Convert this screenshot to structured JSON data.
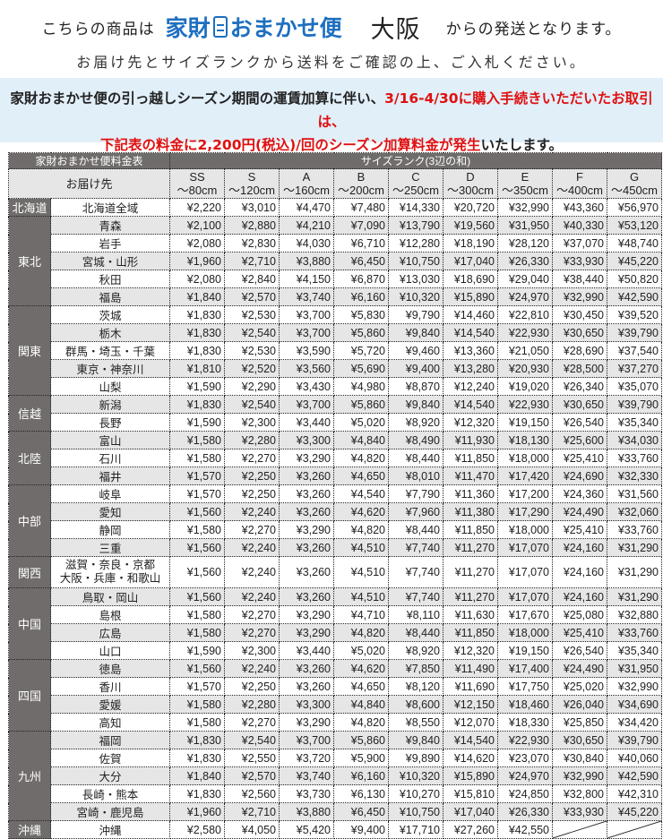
{
  "header": {
    "prefix": "こちらの商品は",
    "logo_text": "家財おまかせ便",
    "origin": "大阪",
    "suffix": "からの発送となります。",
    "instruction": "お届け先とサイズランクから送料をご確認の上、ご入札ください。"
  },
  "notice": {
    "line1_black": "家財おまかせ便の引っ越しシーズン期間の運賃加算に伴い、",
    "line1_red": "3/16-4/30に購入手続きいただいたお取引は、",
    "line2_red": "下記表の料金に2,200円(税込)/回のシーズン加算料金が発生",
    "line2_black": "いたします。"
  },
  "colors": {
    "brand_blue": "#1e6fc0",
    "red": "#e01010",
    "header_gray": "#706c6b",
    "notice_bg": "#e1eff9"
  },
  "table": {
    "title": "家財おまかせ便料金表",
    "size_rank_label": "サイズランク(3辺の和)",
    "dest_label": "お届け先",
    "columns": [
      {
        "rank": "SS",
        "range": "～80cm"
      },
      {
        "rank": "S",
        "range": "～120cm"
      },
      {
        "rank": "A",
        "range": "～160cm"
      },
      {
        "rank": "B",
        "range": "～200cm"
      },
      {
        "rank": "C",
        "range": "～250cm"
      },
      {
        "rank": "D",
        "range": "～300cm"
      },
      {
        "rank": "E",
        "range": "～350cm"
      },
      {
        "rank": "F",
        "range": "～400cm"
      },
      {
        "rank": "G",
        "range": "～450cm"
      }
    ],
    "regions": [
      {
        "name": "北海道",
        "rows": [
          {
            "dest": "北海道全域",
            "prices": [
              "¥2,220",
              "¥3,010",
              "¥4,470",
              "¥7,480",
              "¥14,330",
              "¥20,720",
              "¥32,990",
              "¥43,360",
              "¥56,970"
            ]
          }
        ]
      },
      {
        "name": "東北",
        "rows": [
          {
            "dest": "青森",
            "prices": [
              "¥2,100",
              "¥2,880",
              "¥4,210",
              "¥7,090",
              "¥13,790",
              "¥19,560",
              "¥31,950",
              "¥40,330",
              "¥53,120"
            ]
          },
          {
            "dest": "岩手",
            "prices": [
              "¥2,080",
              "¥2,830",
              "¥4,030",
              "¥6,710",
              "¥12,280",
              "¥18,190",
              "¥28,120",
              "¥37,070",
              "¥48,740"
            ]
          },
          {
            "dest": "宮城・山形",
            "prices": [
              "¥1,960",
              "¥2,710",
              "¥3,880",
              "¥6,450",
              "¥10,750",
              "¥17,040",
              "¥26,330",
              "¥33,930",
              "¥45,220"
            ]
          },
          {
            "dest": "秋田",
            "prices": [
              "¥2,080",
              "¥2,840",
              "¥4,150",
              "¥6,870",
              "¥13,030",
              "¥18,690",
              "¥29,040",
              "¥38,440",
              "¥50,820"
            ]
          },
          {
            "dest": "福島",
            "prices": [
              "¥1,840",
              "¥2,570",
              "¥3,740",
              "¥6,160",
              "¥10,320",
              "¥15,890",
              "¥24,970",
              "¥32,990",
              "¥42,590"
            ]
          }
        ]
      },
      {
        "name": "関東",
        "rows": [
          {
            "dest": "茨城",
            "prices": [
              "¥1,830",
              "¥2,530",
              "¥3,700",
              "¥5,830",
              "¥9,790",
              "¥14,460",
              "¥22,810",
              "¥30,450",
              "¥39,520"
            ]
          },
          {
            "dest": "栃木",
            "prices": [
              "¥1,830",
              "¥2,540",
              "¥3,700",
              "¥5,860",
              "¥9,840",
              "¥14,540",
              "¥22,930",
              "¥30,650",
              "¥39,790"
            ]
          },
          {
            "dest": "群馬・埼玉・千葉",
            "prices": [
              "¥1,830",
              "¥2,530",
              "¥3,590",
              "¥5,720",
              "¥9,460",
              "¥13,360",
              "¥21,050",
              "¥28,690",
              "¥37,540"
            ]
          },
          {
            "dest": "東京・神奈川",
            "prices": [
              "¥1,810",
              "¥2,520",
              "¥3,560",
              "¥5,690",
              "¥9,400",
              "¥13,280",
              "¥20,930",
              "¥28,500",
              "¥37,270"
            ]
          },
          {
            "dest": "山梨",
            "prices": [
              "¥1,590",
              "¥2,290",
              "¥3,430",
              "¥4,980",
              "¥8,870",
              "¥12,240",
              "¥19,020",
              "¥26,340",
              "¥35,070"
            ]
          }
        ]
      },
      {
        "name": "信越",
        "rows": [
          {
            "dest": "新潟",
            "prices": [
              "¥1,830",
              "¥2,540",
              "¥3,700",
              "¥5,860",
              "¥9,840",
              "¥14,540",
              "¥22,930",
              "¥30,650",
              "¥39,790"
            ]
          },
          {
            "dest": "長野",
            "prices": [
              "¥1,590",
              "¥2,300",
              "¥3,440",
              "¥5,020",
              "¥8,920",
              "¥12,320",
              "¥19,150",
              "¥26,540",
              "¥35,340"
            ]
          }
        ]
      },
      {
        "name": "北陸",
        "rows": [
          {
            "dest": "富山",
            "prices": [
              "¥1,580",
              "¥2,280",
              "¥3,300",
              "¥4,840",
              "¥8,490",
              "¥11,930",
              "¥18,130",
              "¥25,600",
              "¥34,030"
            ]
          },
          {
            "dest": "石川",
            "prices": [
              "¥1,580",
              "¥2,270",
              "¥3,290",
              "¥4,820",
              "¥8,440",
              "¥11,850",
              "¥18,000",
              "¥25,410",
              "¥33,760"
            ]
          },
          {
            "dest": "福井",
            "prices": [
              "¥1,570",
              "¥2,250",
              "¥3,260",
              "¥4,650",
              "¥8,010",
              "¥11,470",
              "¥17,420",
              "¥24,690",
              "¥32,330"
            ]
          }
        ]
      },
      {
        "name": "中部",
        "rows": [
          {
            "dest": "岐阜",
            "prices": [
              "¥1,570",
              "¥2,250",
              "¥3,260",
              "¥4,540",
              "¥7,790",
              "¥11,360",
              "¥17,200",
              "¥24,360",
              "¥31,560"
            ]
          },
          {
            "dest": "愛知",
            "prices": [
              "¥1,560",
              "¥2,240",
              "¥3,260",
              "¥4,620",
              "¥7,960",
              "¥11,380",
              "¥17,290",
              "¥24,490",
              "¥32,060"
            ]
          },
          {
            "dest": "静岡",
            "prices": [
              "¥1,580",
              "¥2,270",
              "¥3,290",
              "¥4,820",
              "¥8,440",
              "¥11,850",
              "¥18,000",
              "¥25,410",
              "¥33,760"
            ]
          },
          {
            "dest": "三重",
            "prices": [
              "¥1,560",
              "¥2,240",
              "¥3,260",
              "¥4,510",
              "¥7,740",
              "¥11,270",
              "¥17,070",
              "¥24,160",
              "¥31,290"
            ]
          }
        ]
      },
      {
        "name": "関西",
        "rows": [
          {
            "dest": "滋賀・奈良・京都",
            "dest2": "大阪・兵庫・和歌山",
            "prices": [
              "¥1,560",
              "¥2,240",
              "¥3,260",
              "¥4,510",
              "¥7,740",
              "¥11,270",
              "¥17,070",
              "¥24,160",
              "¥31,290"
            ]
          }
        ]
      },
      {
        "name": "中国",
        "rows": [
          {
            "dest": "鳥取・岡山",
            "prices": [
              "¥1,560",
              "¥2,240",
              "¥3,260",
              "¥4,510",
              "¥7,740",
              "¥11,270",
              "¥17,070",
              "¥24,160",
              "¥31,290"
            ]
          },
          {
            "dest": "島根",
            "prices": [
              "¥1,580",
              "¥2,270",
              "¥3,290",
              "¥4,710",
              "¥8,110",
              "¥11,630",
              "¥17,670",
              "¥25,080",
              "¥32,880"
            ]
          },
          {
            "dest": "広島",
            "prices": [
              "¥1,580",
              "¥2,270",
              "¥3,290",
              "¥4,820",
              "¥8,440",
              "¥11,850",
              "¥18,000",
              "¥25,410",
              "¥33,760"
            ]
          },
          {
            "dest": "山口",
            "prices": [
              "¥1,590",
              "¥2,300",
              "¥3,440",
              "¥5,020",
              "¥8,920",
              "¥12,320",
              "¥19,150",
              "¥26,540",
              "¥35,340"
            ]
          }
        ]
      },
      {
        "name": "四国",
        "rows": [
          {
            "dest": "徳島",
            "prices": [
              "¥1,560",
              "¥2,240",
              "¥3,260",
              "¥4,620",
              "¥7,850",
              "¥11,490",
              "¥17,400",
              "¥24,490",
              "¥31,950"
            ]
          },
          {
            "dest": "香川",
            "prices": [
              "¥1,570",
              "¥2,250",
              "¥3,260",
              "¥4,650",
              "¥8,120",
              "¥11,690",
              "¥17,750",
              "¥25,020",
              "¥32,990"
            ]
          },
          {
            "dest": "愛媛",
            "prices": [
              "¥1,580",
              "¥2,280",
              "¥3,300",
              "¥4,840",
              "¥8,600",
              "¥12,150",
              "¥18,460",
              "¥26,040",
              "¥34,690"
            ]
          },
          {
            "dest": "高知",
            "prices": [
              "¥1,580",
              "¥2,270",
              "¥3,290",
              "¥4,820",
              "¥8,550",
              "¥12,070",
              "¥18,330",
              "¥25,850",
              "¥34,420"
            ]
          }
        ]
      },
      {
        "name": "九州",
        "rows": [
          {
            "dest": "福岡",
            "prices": [
              "¥1,830",
              "¥2,540",
              "¥3,700",
              "¥5,860",
              "¥9,840",
              "¥14,540",
              "¥22,930",
              "¥30,650",
              "¥39,790"
            ]
          },
          {
            "dest": "佐賀",
            "prices": [
              "¥1,830",
              "¥2,550",
              "¥3,720",
              "¥5,900",
              "¥9,890",
              "¥14,620",
              "¥23,070",
              "¥30,840",
              "¥40,060"
            ]
          },
          {
            "dest": "大分",
            "prices": [
              "¥1,840",
              "¥2,570",
              "¥3,740",
              "¥6,160",
              "¥10,320",
              "¥15,890",
              "¥24,970",
              "¥32,990",
              "¥42,590"
            ]
          },
          {
            "dest": "長崎・熊本",
            "prices": [
              "¥1,830",
              "¥2,560",
              "¥3,730",
              "¥6,130",
              "¥10,270",
              "¥15,810",
              "¥24,850",
              "¥32,800",
              "¥42,310"
            ]
          },
          {
            "dest": "宮崎・鹿児島",
            "prices": [
              "¥1,960",
              "¥2,710",
              "¥3,880",
              "¥6,450",
              "¥10,750",
              "¥17,040",
              "¥26,330",
              "¥33,930",
              "¥45,220"
            ]
          }
        ]
      },
      {
        "name": "沖縄",
        "rows": [
          {
            "dest": "沖縄",
            "prices": [
              "¥2,580",
              "¥4,050",
              "¥5,420",
              "¥9,400",
              "¥17,710",
              "¥27,260",
              "¥42,550",
              null,
              null
            ]
          }
        ]
      }
    ]
  }
}
